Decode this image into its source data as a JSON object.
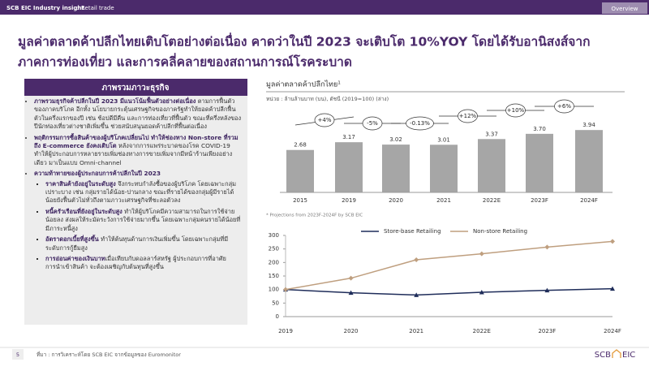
{
  "header": {
    "section": "SCB EIC Industry insight",
    "topic": "Retail trade",
    "tab": "Overview",
    "title_lines": [
      "มูลค่าตลาดค้าปลีกไทยเติบโตอย่างต่อเนื่อง คาดว่าในปี 2023 จะเติบโต 10%YOY โดยได้รับอานิสงส์จาก",
      "ภาคการท่องเที่ยว และการคลี่คลายของสถานการณ์โรคระบาด"
    ]
  },
  "panel": {
    "title": "ภาพรวมภาวะธุรกิจ",
    "bullets": [
      {
        "bold": "ภาพรวมธุรกิจค้าปลีกในปี 2023 มีแนวโน้มฟื้นตัวอย่างต่อเนื่อง",
        "text": " ตามการฟื้นตัวของภาคบริโภค อีกทั้ง นโยบายกระตุ้นเศรษฐกิจของภาครัฐทำให้ยอดค้าปลีกฟื้นตัวในครึ่งแรกของปี เช่น ช้อปดีมีคืน และการท่องเที่ยวที่ฟื้นตัว ขณะที่ครึ่งหลังของปีนักท่องเที่ยวต่างชาติเพิ่มขึ้น ช่วยสนับสนุนยอดค้าปลีกที่ฟื้นต่อเนื่อง"
      },
      {
        "bold": "พฤติกรรมการซื้อสินค้าของผู้บริโภคเปลี่ยนไป ทำให้ช่องทาง Non-store ที่รวมถึง E-commerce ยังคงเติบโต",
        "text": " หลังจากการแพร่ระบาดของโรค COVID-19 ทำให้ผู้ประกอบการหลายรายเพิ่มช่องทางการขายเพิ่มจากมีหน้าร้านเพียงอย่างเดียว มาเป็นแบบ Omni-channel"
      },
      {
        "bold": "ความท้าทายของผู้ประกอบการค้าปลีกในปี 2023",
        "sub": [
          {
            "bold": "ราคาสินค้ายังอยู่ในระดับสูง",
            "text": " จึงกระทบกำลังซื้อของผู้บริโภค โดยเฉพาะกลุ่มเปราะบาง เช่น กลุ่มรายได้น้อย-ปานกลาง ขณะที่รายได้ของกลุ่มผู้มีรายได้น้อยยังฟื้นตัวไม่ทั่วถึงตามภาวะเศรษฐกิจที่ชะลอตัวลง"
          },
          {
            "bold": "หนี้ครัวเรือนที่ยังอยู่ในระดับสูง",
            "text": " ทำให้ผู้บริโภคมีความสามารถในการใช้จ่ายน้อยลง ส่งผลให้ระมัดระวังการใช้จ่ายมากขึ้น โดยเฉพาะกลุ่มคนรายได้น้อยที่มีภาระหนี้สูง"
          },
          {
            "bold": "อัตราดอกเบี้ยที่สูงขึ้น",
            "text": " ทำให้ต้นทุนด้านการเงินเพิ่มขึ้น โดยเฉพาะกลุ่มที่มีระดับการกู้ยืมสูง"
          },
          {
            "bold": "การอ่อนค่าของเงินบาท",
            "text": "เมื่อเทียบกับดอลลาร์สหรัฐ ผู้ประกอบการที่อาศัยการนำเข้าสินค้า จะต้องเผชิญกับต้นทุนที่สูงขึ้น"
          }
        ]
      }
    ]
  },
  "chart_data": [
    {
      "type": "bar",
      "title": "มูลค่าตลาดค้าปลีกไทย¹",
      "subtitle": "หน่วย : ล้านล้านบาท (บน), ดัชนี (2019=100) (ล่าง)",
      "categories": [
        "2015",
        "2019",
        "2020",
        "2021",
        "2022E",
        "2023F",
        "2024F"
      ],
      "values": [
        2.68,
        3.17,
        3.02,
        3.01,
        3.37,
        3.7,
        3.94
      ],
      "value_labels": [
        "2.68",
        "3.17",
        "3.02",
        "3.01",
        "3.37",
        "3.70",
        "3.94"
      ],
      "color": "#a6a6a6",
      "annotations": [
        "+4%",
        "-5%",
        "-0.13%",
        "+12%",
        "+10%",
        "+6%"
      ],
      "note": "* Projections from 2023F-2024F by SCB EIC"
    },
    {
      "type": "line",
      "categories": [
        "2019",
        "2020",
        "2021",
        "2022E",
        "2023F",
        "2024F"
      ],
      "series": [
        {
          "name": "Store-base Retailing",
          "color": "#1f2d5a",
          "values": [
            100,
            88,
            80,
            90,
            97,
            103
          ]
        },
        {
          "name": "Non-store Retailing",
          "color": "#bf9f7f",
          "values": [
            100,
            142,
            210,
            232,
            257,
            278
          ]
        }
      ],
      "ylim": [
        0,
        300
      ],
      "yticks": [
        0,
        50,
        100,
        150,
        200,
        250,
        300
      ]
    }
  ],
  "footer": {
    "page": "5",
    "source": "ที่มา : การวิเคราะห์โดย SCB EIC จากข้อมูลของ Euromonitor",
    "logo_left": "SCB",
    "logo_right": "EIC"
  }
}
